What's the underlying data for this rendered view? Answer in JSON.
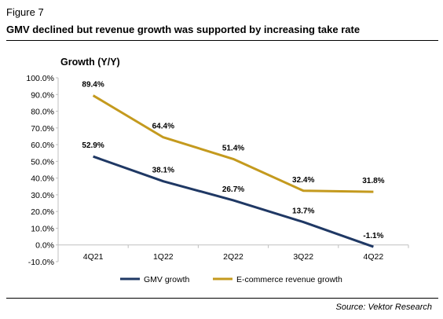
{
  "figure_label": "Figure 7",
  "title": "GMV declined but revenue growth was supported by increasing take rate",
  "source": "Source: Vektor Research",
  "chart_data": {
    "type": "line",
    "ylabel": "Growth (Y/Y)",
    "categories": [
      "4Q21",
      "1Q22",
      "2Q22",
      "3Q22",
      "4Q22"
    ],
    "yticks": [
      "100.0%",
      "90.0%",
      "80.0%",
      "70.0%",
      "60.0%",
      "50.0%",
      "40.0%",
      "30.0%",
      "20.0%",
      "10.0%",
      "0.0%",
      "-10.0%"
    ],
    "ylim": [
      -10,
      100
    ],
    "series": [
      {
        "name": "GMV growth",
        "color": "#1f3864",
        "values": [
          52.9,
          38.1,
          26.7,
          13.7,
          -1.1
        ],
        "labels": [
          "52.9%",
          "38.1%",
          "26.7%",
          "13.7%",
          "-1.1%"
        ]
      },
      {
        "name": "E-commerce revenue growth",
        "color": "#c49a1e",
        "values": [
          89.4,
          64.4,
          51.4,
          32.4,
          31.8
        ],
        "labels": [
          "89.4%",
          "64.4%",
          "51.4%",
          "32.4%",
          "31.8%"
        ]
      }
    ],
    "legend_position": "bottom"
  }
}
